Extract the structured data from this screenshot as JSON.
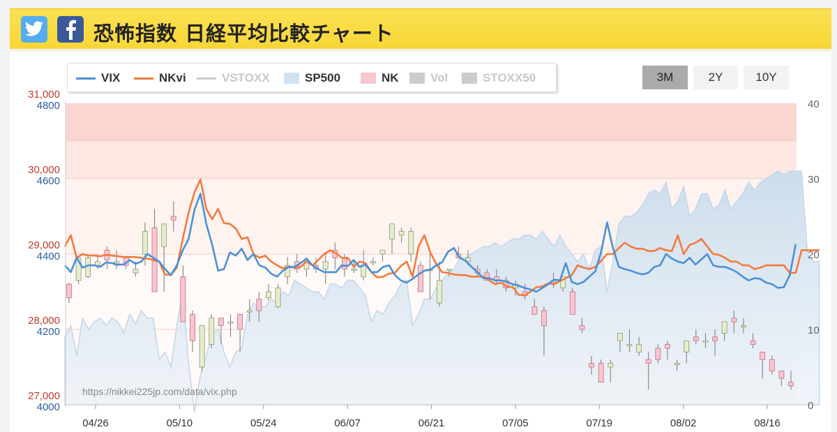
{
  "header": {
    "title": "恐怖指数 日経平均比較チャート",
    "twitter_icon": "twitter-bird-icon",
    "facebook_icon": "facebook-f-icon",
    "twitter_color": "#55acee",
    "facebook_color": "#3b5998"
  },
  "legend": {
    "items": [
      {
        "label": "VIX",
        "type": "line",
        "color": "#4a90d9",
        "active": true
      },
      {
        "label": "NKvi",
        "type": "line",
        "color": "#f47a3c",
        "active": true
      },
      {
        "label": "VSTOXX",
        "type": "line",
        "color": "#cccccc",
        "active": false
      },
      {
        "label": "SP500",
        "type": "area",
        "color": "#cfe2f1",
        "active": true
      },
      {
        "label": "NK",
        "type": "box",
        "color": "#f7c6cf",
        "active": true
      },
      {
        "label": "Vol",
        "type": "box",
        "color": "#cccccc",
        "active": false
      },
      {
        "label": "STOXX50",
        "type": "box",
        "color": "#cccccc",
        "active": false
      }
    ]
  },
  "range_buttons": [
    {
      "label": "3M",
      "active": true
    },
    {
      "label": "2Y",
      "active": false
    },
    {
      "label": "10Y",
      "active": false
    }
  ],
  "source_text": "https://nikkei225jp.com/data/vix.php",
  "chart_data": {
    "type": "line",
    "x_ticks": [
      "04/26",
      "05/10",
      "05/24",
      "06/07",
      "06/21",
      "07/05",
      "07/19",
      "08/02",
      "08/16"
    ],
    "axes": {
      "nk": {
        "ticks": [
          "27,000",
          "28,000",
          "29,000",
          "30,000",
          "31,000"
        ],
        "range": [
          27000,
          31000
        ],
        "color": "#c0392b"
      },
      "sp500": {
        "ticks": [
          "4000",
          "4200",
          "4400",
          "4600",
          "4800"
        ],
        "range": [
          4000,
          4800
        ],
        "color": "#2a5d9f"
      },
      "vix": {
        "ticks": [
          "0",
          "10",
          "20",
          "30",
          "40"
        ],
        "range": [
          0,
          40
        ],
        "color": "#666666"
      }
    },
    "bands": [
      {
        "from": 35,
        "to": 40,
        "color": "#fbd5cf"
      },
      {
        "from": 30,
        "to": 35,
        "color": "#fde7e2"
      },
      {
        "from": 20,
        "to": 30,
        "color": "#fff3f0"
      },
      {
        "from": 0,
        "to": 20,
        "color": "#fff9f7"
      }
    ],
    "series": [
      {
        "name": "VIX",
        "axis": "vix",
        "color": "#4a90d9",
        "values": [
          18.5,
          17.6,
          19.5,
          18.2,
          18.5,
          18.5,
          18.3,
          18.9,
          18.8,
          18.6,
          18.6,
          19.2,
          18.7,
          19.0,
          20.0,
          19.5,
          19.0,
          18.0,
          17.2,
          18.5,
          20.5,
          22.0,
          25.9,
          28.0,
          24.0,
          21.2,
          17.8,
          18.0,
          20.2,
          19.8,
          20.7,
          19.2,
          20.0,
          18.5,
          18.2,
          17.4,
          17.0,
          17.8,
          18.3,
          18.3,
          18.8,
          19.4,
          18.5,
          18.0,
          17.6,
          17.6,
          17.6,
          18.5,
          18.4,
          19.2,
          18.3,
          18.6,
          17.6,
          17.6,
          18.3,
          18.5,
          17.2,
          16.5,
          16.2,
          16.7,
          17.3,
          17.8,
          17.9,
          18.5,
          18.9,
          20.3,
          20.8,
          19.5,
          19.1,
          18.3,
          17.6,
          16.8,
          16.8,
          16.5,
          16.5,
          16.3,
          16.0,
          15.8,
          15.5,
          15.3,
          15.0,
          15.5,
          16.0,
          16.6,
          16.5,
          18.8,
          16.3,
          16.0,
          16.3,
          17.0,
          17.7,
          20.3,
          24.2,
          20.8,
          18.3,
          18.0,
          17.8,
          17.5,
          17.3,
          17.5,
          18.3,
          18.5,
          20.0,
          19.4,
          19.0,
          18.8,
          19.5,
          18.6,
          19.3,
          20.0,
          18.5,
          18.3,
          18.3,
          18.0,
          17.6,
          17.0,
          16.5,
          16.8,
          16.7,
          16.2,
          16.0,
          15.5,
          15.6,
          17.2,
          21.3
        ]
      },
      {
        "name": "NKvi",
        "axis": "nk",
        "color": "#f47a3c",
        "values": [
          29100,
          29250,
          28950,
          29000,
          28980,
          28980,
          28970,
          28990,
          28980,
          28970,
          28960,
          28960,
          28960,
          28950,
          28940,
          28920,
          28900,
          28730,
          28720,
          28820,
          29200,
          29550,
          29820,
          29990,
          29600,
          29460,
          29600,
          29410,
          29400,
          29340,
          29200,
          29220,
          29000,
          28950,
          28980,
          28900,
          28850,
          28810,
          28830,
          28820,
          28830,
          28900,
          28850,
          28920,
          29000,
          29050,
          29010,
          28950,
          28950,
          28830,
          28900,
          28880,
          28760,
          28690,
          28700,
          28740,
          28750,
          28840,
          28900,
          28700,
          29100,
          29250,
          29020,
          28870,
          28760,
          28750,
          28730,
          28720,
          28720,
          28700,
          28700,
          28700,
          28650,
          28600,
          28620,
          28570,
          28560,
          28460,
          28450,
          28500,
          28560,
          28570,
          28610,
          28600,
          28640,
          28680,
          28720,
          28850,
          28820,
          28800,
          28830,
          28910,
          29000,
          29000,
          29080,
          29150,
          29100,
          29070,
          29070,
          29040,
          29040,
          29080,
          29050,
          29040,
          29250,
          29000,
          29120,
          29150,
          29200,
          29100,
          29000,
          28990,
          28950,
          28900,
          28900,
          28850,
          28850,
          28800,
          28820,
          28850,
          28850,
          28850,
          28850,
          28750,
          28750,
          29050,
          29050,
          29050,
          29050
        ]
      },
      {
        "name": "SP500",
        "axis": "sp500",
        "color": "#cfe2f1",
        "type": "area",
        "values": [
          4180,
          4210,
          4130,
          4230,
          4200,
          4220,
          4230,
          4210,
          4230,
          4220,
          4190,
          4240,
          4215,
          4250,
          4230,
          4230,
          4120,
          4140,
          4100,
          4210,
          4300,
          4110,
          3980,
          4080,
          4130,
          4190,
          4200,
          4140,
          4100,
          4140,
          4150,
          4240,
          4270,
          4260,
          4260,
          4280,
          4270,
          4300,
          4290,
          4330,
          4320,
          4310,
          4300,
          4300,
          4280,
          4320,
          4320,
          4310,
          4330,
          4330,
          4310,
          4290,
          4220,
          4250,
          4240,
          4270,
          4290,
          4320,
          4330,
          4210,
          4240,
          4280,
          4280,
          4310,
          4330,
          4350,
          4360,
          4390,
          4390,
          4400,
          4410,
          4420,
          4420,
          4430,
          4420,
          4430,
          4440,
          4440,
          4450,
          4450,
          4440,
          4460,
          4440,
          4420,
          4450,
          4420,
          4400,
          4380,
          4400,
          4360,
          4410,
          4420,
          4300,
          4380,
          4480,
          4500,
          4500,
          4510,
          4530,
          4560,
          4570,
          4560,
          4590,
          4520,
          4540,
          4580,
          4500,
          4520,
          4560,
          4560,
          4520,
          4530,
          4570,
          4520,
          4540,
          4560,
          4590,
          4570,
          4590,
          4600,
          4610,
          4620,
          4610,
          4620,
          4620,
          4620,
          4400,
          4380,
          4380
        ]
      },
      {
        "name": "NK",
        "axis": "nk",
        "type": "candlestick",
        "color": "#f7c6cf",
        "bars": [
          [
            28600,
            28620,
            28350,
            28420
          ],
          [
            28650,
            28980,
            28600,
            28950
          ],
          [
            28700,
            28990,
            28680,
            28950
          ],
          [
            28850,
            29000,
            28800,
            28900
          ],
          [
            29050,
            29100,
            28800,
            28920
          ],
          [
            28850,
            29050,
            28800,
            28900
          ],
          [
            28950,
            28980,
            28800,
            28850
          ],
          [
            28750,
            28900,
            28700,
            28800
          ],
          [
            29000,
            29420,
            28850,
            29300
          ],
          [
            29350,
            29600,
            28900,
            28500
          ],
          [
            29100,
            29350,
            28500,
            29400
          ],
          [
            29500,
            29700,
            29300,
            29450
          ],
          [
            28700,
            28850,
            28250,
            28100
          ],
          [
            28200,
            28250,
            27700,
            27850
          ],
          [
            27500,
            28050,
            27450,
            28050
          ],
          [
            27800,
            28200,
            27750,
            28150
          ],
          [
            28150,
            28050,
            27800,
            28050
          ],
          [
            28100,
            28200,
            27900,
            28100
          ],
          [
            28200,
            28200,
            27700,
            28000
          ],
          [
            28250,
            28400,
            28100,
            28250
          ],
          [
            28400,
            28500,
            28100,
            28250
          ],
          [
            28420,
            28600,
            28380,
            28500
          ],
          [
            28300,
            28600,
            28280,
            28550
          ],
          [
            28700,
            28960,
            28600,
            28850
          ],
          [
            28900,
            29000,
            28750,
            28800
          ],
          [
            28800,
            28950,
            28700,
            28900
          ],
          [
            28850,
            28950,
            28750,
            28800
          ],
          [
            28800,
            29000,
            28600,
            28900
          ],
          [
            29050,
            29150,
            28800,
            28950
          ],
          [
            28950,
            29000,
            28700,
            28800
          ],
          [
            28800,
            28900,
            28750,
            28800
          ],
          [
            28700,
            29050,
            28650,
            28850
          ],
          [
            28900,
            28950,
            28850,
            28900
          ],
          [
            29000,
            29050,
            28900,
            29050
          ],
          [
            29200,
            29400,
            29000,
            29400
          ],
          [
            29250,
            29350,
            29150,
            29300
          ],
          [
            29000,
            29350,
            28900,
            29300
          ],
          [
            28850,
            28900,
            28600,
            28500
          ],
          [
            28800,
            29000,
            28400,
            28800
          ],
          [
            28350,
            28900,
            28300,
            28650
          ],
          [
            28800,
            28800,
            28700,
            28800
          ],
          [
            29000,
            29100,
            28950,
            28950
          ],
          [
            28900,
            29050,
            28850,
            28950
          ],
          [
            28800,
            28850,
            28700,
            28750
          ],
          [
            28750,
            28800,
            28650,
            28650
          ],
          [
            28700,
            28800,
            28600,
            28650
          ],
          [
            28650,
            28700,
            28500,
            28550
          ],
          [
            28550,
            28650,
            28450,
            28600
          ],
          [
            28500,
            28600,
            28400,
            28450
          ],
          [
            28300,
            28400,
            28200,
            28200
          ],
          [
            28250,
            28300,
            27650,
            28050
          ],
          [
            28650,
            28750,
            28550,
            28650
          ],
          [
            28550,
            28700,
            28500,
            28700
          ],
          [
            28500,
            28550,
            28300,
            28200
          ],
          [
            28050,
            28150,
            27950,
            28000
          ],
          [
            27550,
            27650,
            27400,
            27500
          ],
          [
            27550,
            27600,
            27350,
            27300
          ],
          [
            27500,
            27600,
            27300,
            27550
          ],
          [
            27850,
            27900,
            27700,
            27950
          ],
          [
            27800,
            28000,
            27700,
            27800
          ],
          [
            27700,
            27900,
            27650,
            27800
          ],
          [
            27600,
            27700,
            27200,
            27550
          ],
          [
            27750,
            27800,
            27550,
            27600
          ],
          [
            27800,
            27850,
            27600,
            27750
          ],
          [
            27550,
            27600,
            27450,
            27550
          ],
          [
            27700,
            27850,
            27550,
            27850
          ],
          [
            27900,
            28000,
            27800,
            27850
          ],
          [
            27850,
            27950,
            27750,
            27850
          ],
          [
            27900,
            28000,
            27650,
            27850
          ],
          [
            27950,
            28100,
            27850,
            28100
          ],
          [
            28150,
            28250,
            27950,
            28100
          ],
          [
            28050,
            28150,
            27950,
            28050
          ],
          [
            27850,
            27950,
            27750,
            27800
          ],
          [
            27700,
            27700,
            27350,
            27600
          ],
          [
            27600,
            27650,
            27400,
            27450
          ],
          [
            27450,
            27450,
            27250,
            27350
          ],
          [
            27300,
            27450,
            27200,
            27250
          ]
        ]
      }
    ]
  }
}
